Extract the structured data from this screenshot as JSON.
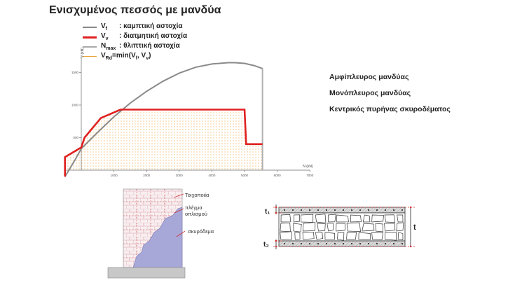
{
  "title": "Ενισχυμένος πεσσός με μανδύα",
  "legend": [
    {
      "sym": "V",
      "sub": "f",
      "text": ": καμπτική αστοχία",
      "color": "#888888"
    },
    {
      "sym": "V",
      "sub": "v",
      "text": ": διατμητική αστοχία",
      "color": "#e02020"
    },
    {
      "sym": "N",
      "sub": "max",
      "text": ": θλιπτική αστοχία",
      "color": "#aaaaaa"
    },
    {
      "sym": "V",
      "sub": "Rd",
      "text": "=min(V",
      "text2": "f",
      "text3": ", V",
      "text4": "v",
      "text5": ")",
      "color": "#e8a030"
    }
  ],
  "options": [
    "Αμφίπλευρος μανδύας",
    "Μονόπλευρος μανδύας",
    "Κεντρικός πυρήνας σκυροδέματος"
  ],
  "chart_data": {
    "type": "line",
    "xlabel": "N (kN)",
    "ylabel": "V (kN)",
    "xlim": [
      -500,
      7000
    ],
    "ylim": [
      -200,
      1750
    ],
    "xticks": [
      1000,
      2000,
      3000,
      4000,
      5000,
      6000,
      7000
    ],
    "yticks": [
      500,
      1000,
      1500
    ],
    "series": [
      {
        "key": "flex",
        "color": "#8a8a8a",
        "x": [
          -500,
          -200,
          0,
          500,
          1000,
          1500,
          2000,
          2500,
          3000,
          3500,
          4000,
          4500,
          4700,
          5000,
          5300,
          5550
        ],
        "y": [
          -100,
          150,
          330,
          580,
          820,
          1030,
          1210,
          1365,
          1490,
          1580,
          1630,
          1650,
          1650,
          1640,
          1605,
          1560
        ]
      },
      {
        "key": "shear",
        "color": "#e02020",
        "x": [
          -500,
          -500,
          0,
          100,
          600,
          1200,
          5000,
          5050,
          5550
        ],
        "y": [
          -100,
          200,
          350,
          500,
          800,
          930,
          930,
          400,
          400
        ]
      }
    ],
    "nmax_x": 5550
  },
  "drawing1": {
    "label1": "Τοιχοποιία",
    "label2a": "πλέγμα",
    "label2b": "οπλισμού",
    "label3": "σκυρόδεμα"
  },
  "drawing2": {
    "t1": "t₁",
    "t": "t",
    "t2": "t₂"
  }
}
